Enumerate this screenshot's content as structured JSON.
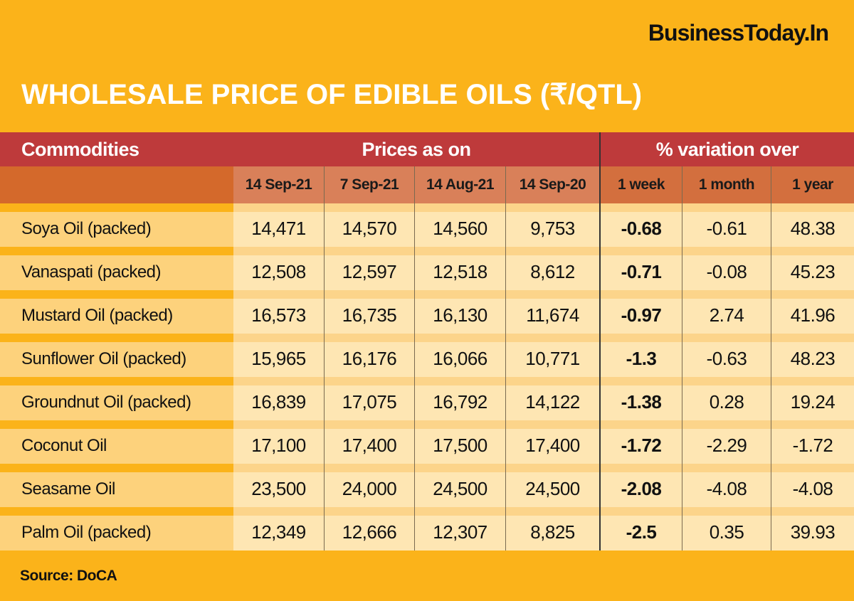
{
  "brand": "BusinessToday.In",
  "title": "WHOLESALE PRICE OF EDIBLE OILS (₹/QTL)",
  "header": {
    "commodities": "Commodities",
    "prices": "Prices as on",
    "variation": "% variation over"
  },
  "columns": [
    "14 Sep-21",
    "7 Sep-21",
    "14 Aug-21",
    "14 Sep-20",
    "1 week",
    "1 month",
    "1 year"
  ],
  "rows": [
    [
      "Soya Oil (packed)",
      "14,471",
      "14,570",
      "14,560",
      "9,753",
      "-0.68",
      "-0.61",
      "48.38"
    ],
    [
      "Vanaspati (packed)",
      "12,508",
      "12,597",
      "12,518",
      "8,612",
      "-0.71",
      "-0.08",
      "45.23"
    ],
    [
      "Mustard Oil (packed)",
      "16,573",
      "16,735",
      "16,130",
      "11,674",
      "-0.97",
      "2.74",
      "41.96"
    ],
    [
      "Sunflower Oil (packed)",
      "15,965",
      "16,176",
      "16,066",
      "10,771",
      "-1.3",
      "-0.63",
      "48.23"
    ],
    [
      "Groundnut Oil (packed)",
      "16,839",
      "17,075",
      "16,792",
      "14,122",
      "-1.38",
      "0.28",
      "19.24"
    ],
    [
      "Coconut Oil",
      "17,100",
      "17,400",
      "17,500",
      "17,400",
      "-1.72",
      "-2.29",
      "-1.72"
    ],
    [
      "Seasame Oil",
      "23,500",
      "24,000",
      "24,500",
      "24,500",
      "-2.08",
      "-4.08",
      "-4.08"
    ],
    [
      "Palm Oil (packed)",
      "12,349",
      "12,666",
      "12,307",
      "8,825",
      "-2.5",
      "0.35",
      "39.93"
    ]
  ],
  "source": "Source: DoCA",
  "colors": {
    "background": "#FBB31A",
    "header": "#BE3A3B",
    "subheader": "#D4692B",
    "cell": "#FEE6B3"
  }
}
